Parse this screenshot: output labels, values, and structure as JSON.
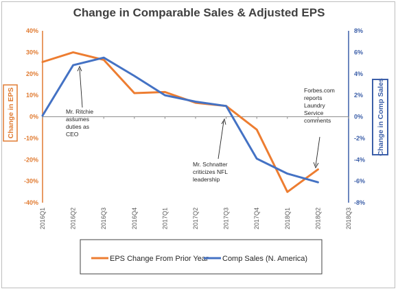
{
  "chart_data": {
    "type": "line",
    "title": "Change in Comparable Sales & Adjusted EPS",
    "categories": [
      "2016Q1",
      "2016Q2",
      "2016Q3",
      "2016Q4",
      "2017Q1",
      "2017Q2",
      "2017Q3",
      "2017Q4",
      "2018Q1",
      "2018Q2",
      "2018Q3"
    ],
    "ylabel_left": "Change in EPS",
    "ylabel_right": "Change in Comp Sales",
    "ylim_left": [
      -40,
      40
    ],
    "ylim_right": [
      -8,
      8
    ],
    "ticks_left": [
      "40%",
      "30%",
      "20%",
      "10%",
      "0%",
      "-10%",
      "-20%",
      "-30%",
      "-40%"
    ],
    "ticks_right": [
      "8%",
      "6%",
      "4%",
      "2%",
      "0%",
      "-2%",
      "-4%",
      "-6%",
      "-8%"
    ],
    "series": [
      {
        "name": "EPS Change From Prior Year",
        "axis": "left",
        "color": "#ed7d31",
        "values": [
          25.5,
          30,
          26.5,
          11,
          11.5,
          6.5,
          5,
          -6,
          -35,
          -24.5,
          null
        ]
      },
      {
        "name": "Comp Sales (N. America)",
        "axis": "right",
        "color": "#4472c4",
        "values": [
          0.1,
          4.8,
          5.5,
          3.8,
          2.0,
          1.4,
          1.0,
          -3.9,
          -5.3,
          -6.1,
          null
        ]
      }
    ],
    "annotations": [
      {
        "lines": [
          "Mr. Ritchie",
          "assumes",
          "duties as",
          "CEO"
        ],
        "category": "2016Q2"
      },
      {
        "lines": [
          "Mr. Schnatter",
          "criticizes NFL",
          "leadership"
        ],
        "category": "2017Q3"
      },
      {
        "lines": [
          "Forbes.com",
          "reports",
          "Laundry",
          "Service",
          "comments"
        ],
        "category": "2018Q2"
      }
    ],
    "grid": false,
    "legend_placement": "bottom"
  }
}
